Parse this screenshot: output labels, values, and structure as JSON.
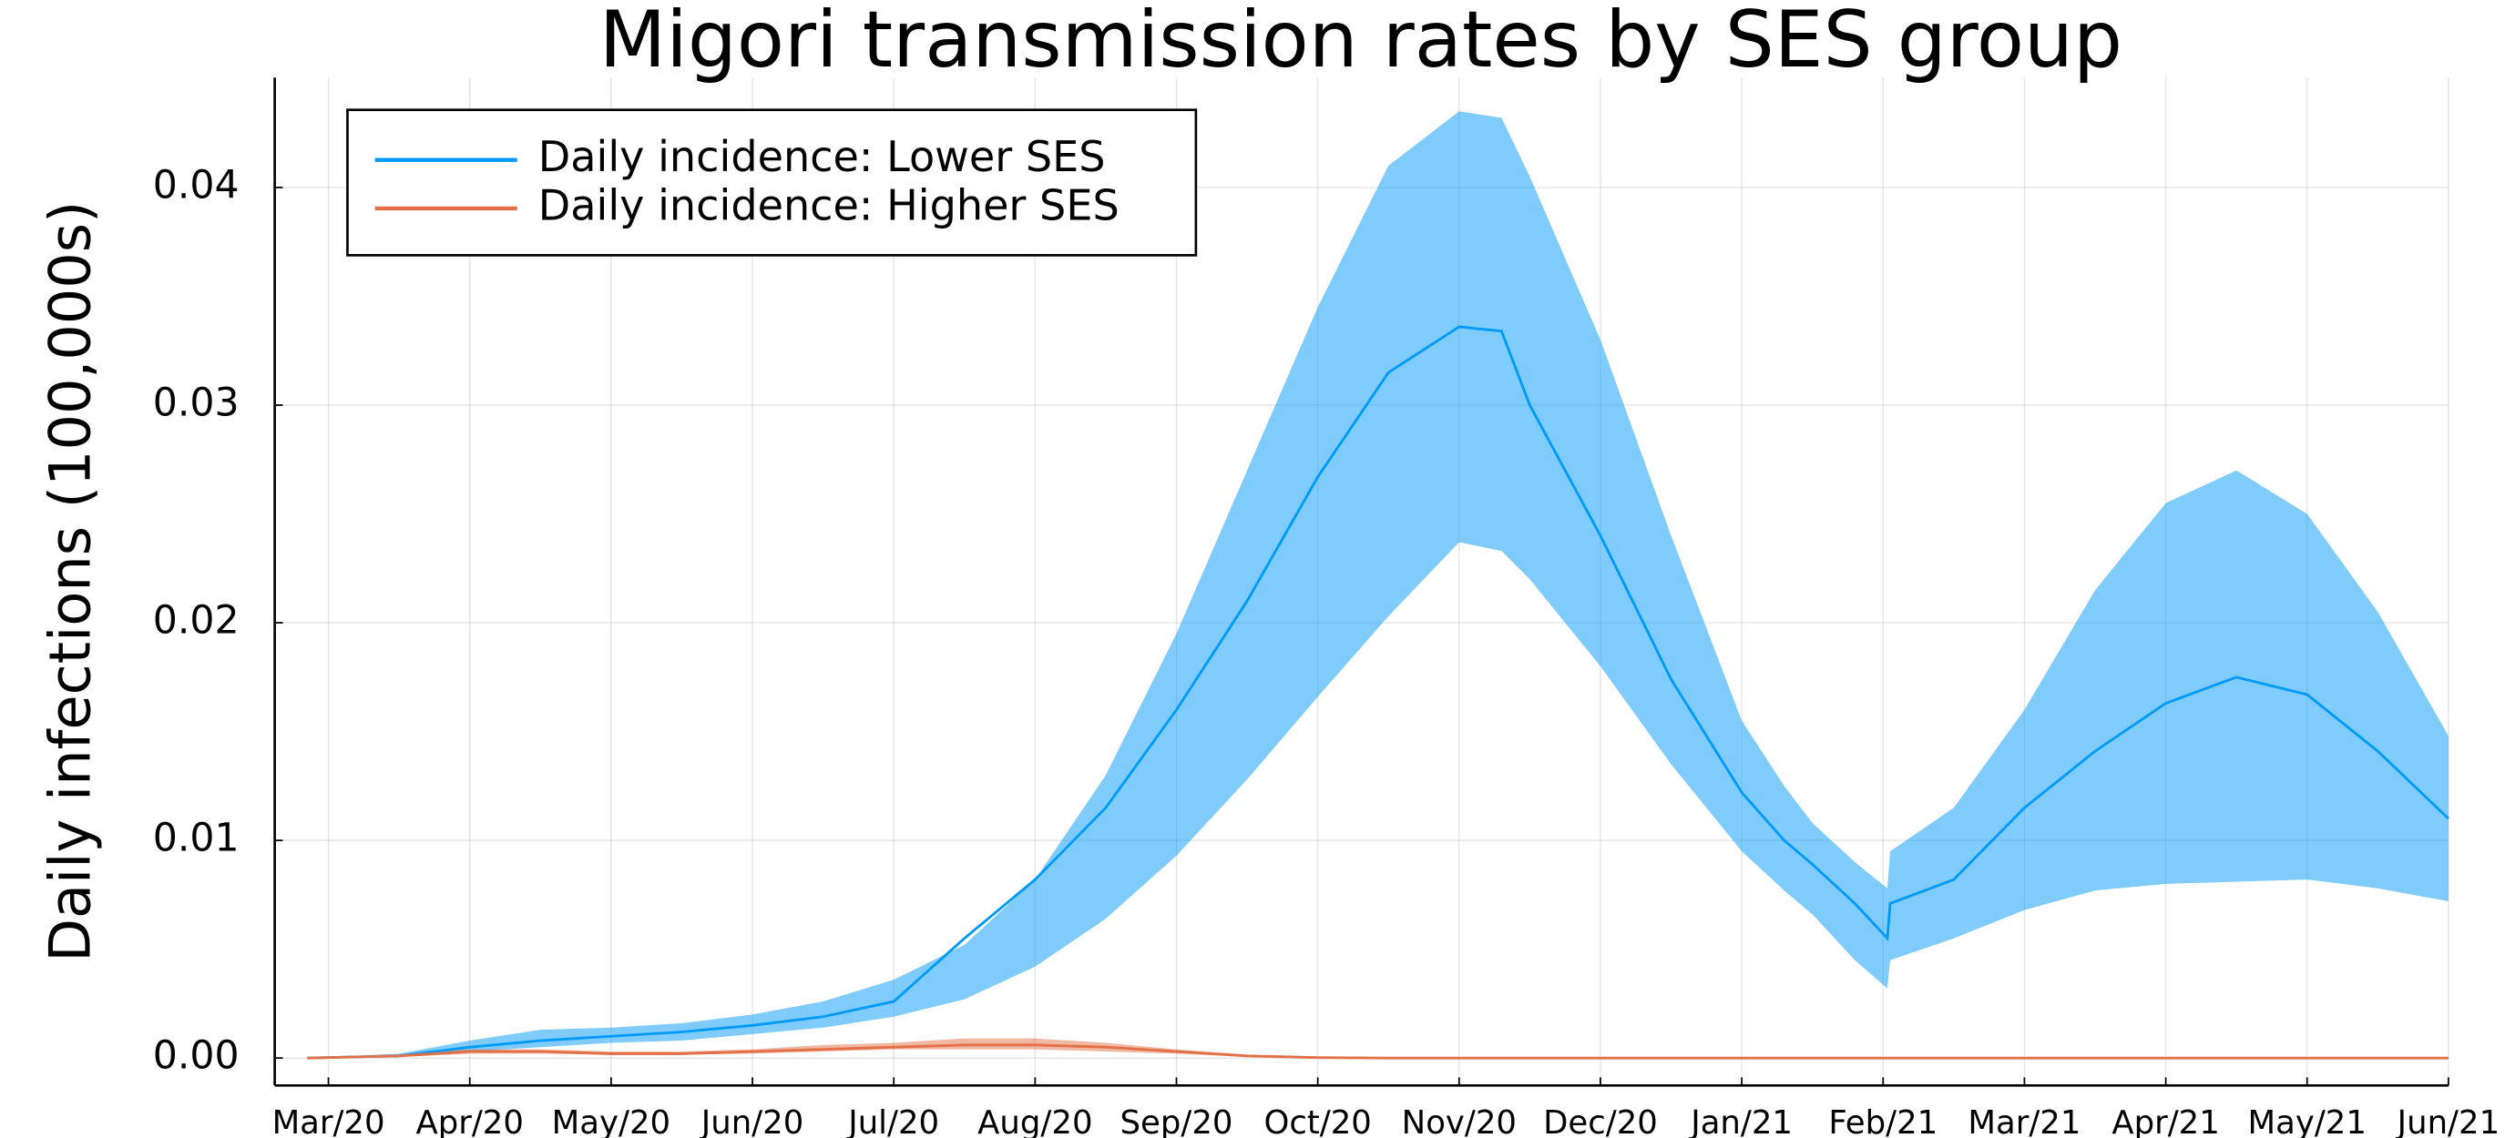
{
  "chart_data": {
    "type": "line",
    "title": "Migori transmission rates by SES group",
    "ylabel": "Daily infections (100,000s)",
    "x": [
      -0.15,
      0.5,
      1,
      1.5,
      2,
      2.5,
      3,
      3.5,
      4,
      4.5,
      5,
      5.5,
      6,
      6.5,
      7,
      7.5,
      8,
      8.3,
      8.5,
      9,
      9.5,
      10,
      10.3,
      10.5,
      10.8,
      11.03,
      11.05,
      11.5,
      12,
      12.5,
      13,
      13.5,
      14,
      14.5,
      15
    ],
    "series": [
      {
        "name": "Daily incidence: Lower SES",
        "color": "#009afa",
        "values": [
          0,
          0.0001,
          0.0005,
          0.0008,
          0.001,
          0.0012,
          0.0015,
          0.0019,
          0.0026,
          0.0055,
          0.0082,
          0.0115,
          0.016,
          0.021,
          0.0267,
          0.0315,
          0.0336,
          0.0334,
          0.03,
          0.024,
          0.0174,
          0.0122,
          0.01,
          0.0089,
          0.0071,
          0.0055,
          0.0071,
          0.0082,
          0.0115,
          0.0141,
          0.0163,
          0.0175,
          0.0167,
          0.0141,
          0.011
        ],
        "band": {
          "upper": [
            0,
            0.0002,
            0.0008,
            0.0013,
            0.0014,
            0.0016,
            0.002,
            0.0026,
            0.0036,
            0.0052,
            0.0082,
            0.013,
            0.0195,
            0.027,
            0.0345,
            0.041,
            0.0435,
            0.0432,
            0.0405,
            0.033,
            0.024,
            0.0155,
            0.0125,
            0.0108,
            0.009,
            0.0078,
            0.0095,
            0.0115,
            0.016,
            0.0215,
            0.0255,
            0.027,
            0.025,
            0.0205,
            0.0148
          ],
          "lower": [
            0,
            5e-05,
            0.0003,
            0.0005,
            0.0007,
            0.0008,
            0.0011,
            0.0014,
            0.0019,
            0.0027,
            0.0042,
            0.0064,
            0.0093,
            0.0128,
            0.0166,
            0.0203,
            0.0237,
            0.0233,
            0.022,
            0.018,
            0.0135,
            0.0095,
            0.0077,
            0.0066,
            0.0045,
            0.0032,
            0.0045,
            0.0055,
            0.0068,
            0.0077,
            0.008,
            0.0081,
            0.0082,
            0.0078,
            0.0072
          ]
        }
      },
      {
        "name": "Daily incidence: Higher SES",
        "color": "#e26f46",
        "values": [
          0,
          0.0001,
          0.0003,
          0.0003,
          0.0002,
          0.0002,
          0.0003,
          0.0004,
          0.0005,
          0.0006,
          0.0006,
          0.0005,
          0.0003,
          0.0001,
          2e-05,
          0,
          0,
          0,
          0,
          0,
          0,
          0,
          0,
          0,
          0,
          0,
          0,
          0,
          0,
          0,
          0,
          0,
          0,
          0,
          0
        ],
        "band": {
          "upper": [
            0,
            0.00015,
            0.0004,
            0.0004,
            0.0003,
            0.0003,
            0.0004,
            0.0006,
            0.0007,
            0.0009,
            0.0009,
            0.0007,
            0.0004,
            0.00015,
            3e-05,
            0,
            0,
            0,
            0,
            0,
            0,
            0,
            0,
            0,
            0,
            0,
            0,
            0,
            0,
            0,
            0,
            0,
            0,
            0,
            0
          ],
          "lower": [
            0,
            5e-05,
            0.0002,
            0.0002,
            0.00015,
            0.00015,
            0.0002,
            0.0003,
            0.0004,
            0.0004,
            0.0004,
            0.0003,
            0.0002,
            5e-05,
            1e-05,
            0,
            0,
            0,
            0,
            0,
            0,
            0,
            0,
            0,
            0,
            0,
            0,
            0,
            0,
            0,
            0,
            0,
            0,
            0,
            0
          ]
        }
      }
    ],
    "xlim": [
      -0.38,
      15
    ],
    "xticks": [
      {
        "value": 0,
        "label": "Mar/20"
      },
      {
        "value": 1,
        "label": "Apr/20"
      },
      {
        "value": 2,
        "label": "May/20"
      },
      {
        "value": 3,
        "label": "Jun/20"
      },
      {
        "value": 4,
        "label": "Jul/20"
      },
      {
        "value": 5,
        "label": "Aug/20"
      },
      {
        "value": 6,
        "label": "Sep/20"
      },
      {
        "value": 7,
        "label": "Oct/20"
      },
      {
        "value": 8,
        "label": "Nov/20"
      },
      {
        "value": 9,
        "label": "Dec/20"
      },
      {
        "value": 10,
        "label": "Jan/21"
      },
      {
        "value": 11,
        "label": "Feb/21"
      },
      {
        "value": 12,
        "label": "Mar/21"
      },
      {
        "value": 13,
        "label": "Apr/21"
      },
      {
        "value": 14,
        "label": "May/21"
      },
      {
        "value": 15,
        "label": "Jun/21"
      }
    ],
    "ylim": [
      -0.00126,
      0.04505
    ],
    "yticks": [
      {
        "value": 0,
        "label": "0.00"
      },
      {
        "value": 0.01,
        "label": "0.01"
      },
      {
        "value": 0.02,
        "label": "0.02"
      },
      {
        "value": 0.03,
        "label": "0.03"
      },
      {
        "value": 0.04,
        "label": "0.04"
      }
    ],
    "grid": true,
    "legend": "top-left"
  }
}
